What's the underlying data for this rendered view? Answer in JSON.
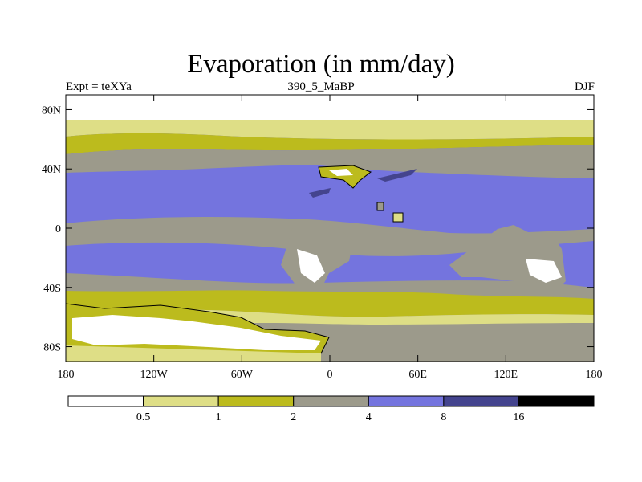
{
  "title": "Evaporation (in mm/day)",
  "subtitle_left": "Expt = teXYa",
  "subtitle_center": "390_5_MaBP",
  "subtitle_right": "DJF",
  "lon_ticks": [
    "180",
    "120W",
    "60W",
    "0",
    "60E",
    "120E",
    "180"
  ],
  "lat_ticks": [
    "80N",
    "40N",
    "0",
    "40S",
    "80S"
  ],
  "colorbar": {
    "levels": [
      "0.5",
      "1",
      "2",
      "4",
      "8",
      "16"
    ],
    "colors": [
      "#ffffff",
      "#dede86",
      "#bcbb1d",
      "#9c9a8b",
      "#7474de",
      "#44448e",
      "#000000"
    ]
  },
  "chart_data": {
    "type": "heatmap",
    "title": "Evaporation (in mm/day)",
    "xlabel": "",
    "ylabel": "",
    "xlim": [
      -180,
      180
    ],
    "ylim": [
      -90,
      90
    ],
    "x_ticks": [
      "180",
      "120W",
      "60W",
      "0",
      "60E",
      "120E",
      "180"
    ],
    "y_ticks": [
      "80N",
      "40N",
      "0",
      "40S",
      "80S"
    ],
    "contour_levels": [
      0.5,
      1,
      2,
      4,
      8,
      16
    ],
    "legend": "bottom"
  }
}
